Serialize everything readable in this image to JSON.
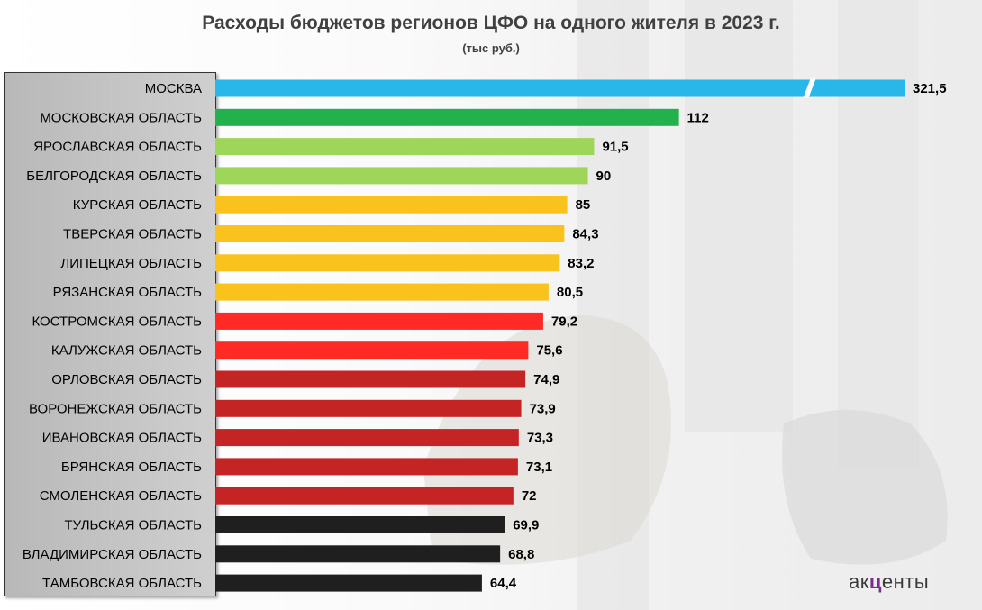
{
  "chart_data": {
    "type": "bar",
    "orientation": "horizontal",
    "title": "Расходы бюджетов регионов ЦФО на одного жителя в 2023 г.",
    "subtitle": "(тыс руб.)",
    "categories": [
      "МОСКВА",
      "МОСКОВСКАЯ ОБЛАСТЬ",
      "ЯРОСЛАВСКАЯ ОБЛАСТЬ",
      "БЕЛГОРОДСКАЯ ОБЛАСТЬ",
      "КУРСКАЯ ОБЛАСТЬ",
      "ТВЕРСКАЯ ОБЛАСТЬ",
      "ЛИПЕЦКАЯ ОБЛАСТЬ",
      "РЯЗАНСКАЯ ОБЛАСТЬ",
      "КОСТРОМСКАЯ ОБЛАСТЬ",
      "КАЛУЖСКАЯ ОБЛАСТЬ",
      "ОРЛОВСКАЯ ОБЛАСТЬ",
      "ВОРОНЕЖСКАЯ ОБЛАСТЬ",
      "ИВАНОВСКАЯ ОБЛАСТЬ",
      "БРЯНСКАЯ ОБЛАСТЬ",
      "СМОЛЕНСКАЯ ОБЛАСТЬ",
      "ТУЛЬСКАЯ ОБЛАСТЬ",
      "ВЛАДИМИРСКАЯ ОБЛАСТЬ",
      "ТАМБОВСКАЯ ОБЛАСТЬ"
    ],
    "values": [
      321.5,
      112,
      91.5,
      90,
      85,
      84.3,
      83.2,
      80.5,
      79.2,
      75.6,
      74.9,
      73.9,
      73.3,
      73.1,
      72,
      69.9,
      68.8,
      64.4
    ],
    "value_labels": [
      "321,5",
      "112",
      "91,5",
      "90",
      "85",
      "84,3",
      "83,2",
      "80,5",
      "79,2",
      "75,6",
      "74,9",
      "73,9",
      "73,3",
      "73,1",
      "72",
      "69,9",
      "68,8",
      "64,4"
    ],
    "colors": [
      "#29b6e8",
      "#22b14c",
      "#9ed65a",
      "#9ed65a",
      "#f9c21c",
      "#f9c21c",
      "#f9c21c",
      "#f9c21c",
      "#ff2a26",
      "#ff2a26",
      "#c42424",
      "#c42424",
      "#c42424",
      "#c42424",
      "#c42424",
      "#1f1f1f",
      "#1f1f1f",
      "#1f1f1f"
    ],
    "broken_axis_bar_index": 0,
    "xlim": [
      0,
      112
    ],
    "grid": false,
    "legend": "none"
  },
  "logo": {
    "text_before": "ак",
    "text_mark": "ц",
    "text_after": "енты"
  }
}
